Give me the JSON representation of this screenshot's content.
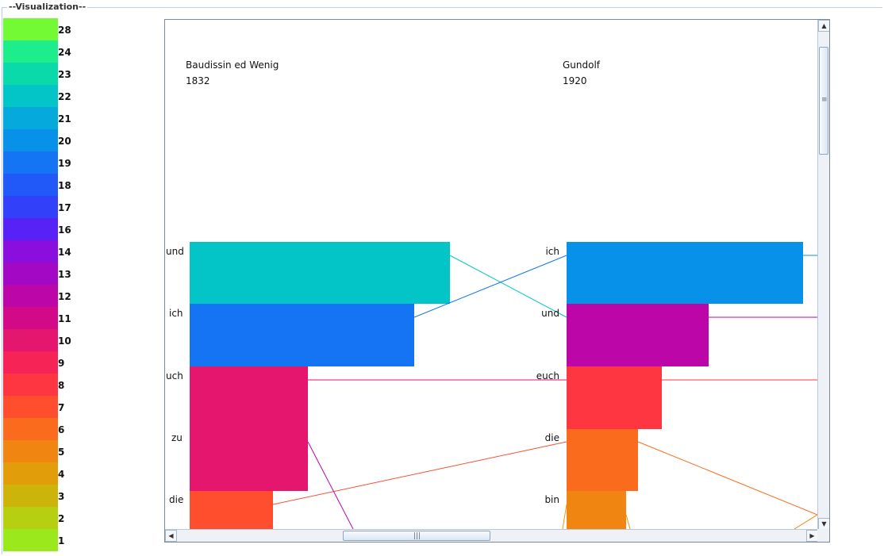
{
  "panel": {
    "title": "--Visualization--"
  },
  "legend": [
    {
      "label": "28",
      "color": "#73fa35"
    },
    {
      "label": "24",
      "color": "#1ded8a"
    },
    {
      "label": "23",
      "color": "#0ad9a9"
    },
    {
      "label": "22",
      "color": "#03c5c7"
    },
    {
      "label": "21",
      "color": "#05a9dc"
    },
    {
      "label": "20",
      "color": "#0891e8"
    },
    {
      "label": "19",
      "color": "#1474f4"
    },
    {
      "label": "18",
      "color": "#2158f8"
    },
    {
      "label": "17",
      "color": "#3340fa"
    },
    {
      "label": "16",
      "color": "#5722f5"
    },
    {
      "label": "14",
      "color": "#8a0edd"
    },
    {
      "label": "13",
      "color": "#a308c4"
    },
    {
      "label": "12",
      "color": "#bc06a8"
    },
    {
      "label": "11",
      "color": "#d20a87"
    },
    {
      "label": "10",
      "color": "#e5166d"
    },
    {
      "label": "9",
      "color": "#f52356"
    },
    {
      "label": "8",
      "color": "#fe3641"
    },
    {
      "label": "7",
      "color": "#fe4e2e"
    },
    {
      "label": "6",
      "color": "#fb6b1d"
    },
    {
      "label": "5",
      "color": "#f08511"
    },
    {
      "label": "4",
      "color": "#e29e0a"
    },
    {
      "label": "3",
      "color": "#ccb40a"
    },
    {
      "label": "2",
      "color": "#b6d011"
    },
    {
      "label": "1",
      "color": "#9be81d"
    }
  ],
  "left_column": {
    "translator": "Baudissin ed Wenig",
    "year": "1832",
    "words": [
      {
        "word": "und",
        "count": 22,
        "color": "#03c5c7"
      },
      {
        "word": "ich",
        "count": 19,
        "color": "#1474f4"
      },
      {
        "word": "uch",
        "count": 10,
        "color": "#e5166d"
      },
      {
        "word": "zu",
        "count": 10,
        "color": "#e5166d"
      },
      {
        "word": "die",
        "count": 7,
        "color": "#fe4e2e"
      }
    ]
  },
  "right_column": {
    "translator": "Gundolf",
    "year": "1920",
    "words": [
      {
        "word": "ich",
        "count": 20,
        "color": "#0891e8"
      },
      {
        "word": "und",
        "count": 12,
        "color": "#bc06a8"
      },
      {
        "word": "euch",
        "count": 8,
        "color": "#fe3641"
      },
      {
        "word": "die",
        "count": 6,
        "color": "#fb6b1d"
      },
      {
        "word": "bin",
        "count": 5,
        "color": "#f08511"
      }
    ]
  },
  "links": [
    {
      "from": "und",
      "to": "und",
      "color": "#03c5c7"
    },
    {
      "from": "ich",
      "to": "ich",
      "color": "#1474f4"
    },
    {
      "from": "uch",
      "to": "euch",
      "color": "#e5166d"
    },
    {
      "from": "die",
      "to": "die",
      "color": "#fe4e2e"
    },
    {
      "from": "zu",
      "to": "offscreen",
      "color": "#bc06a8"
    }
  ],
  "scrollbars": {
    "up_icon": "arrow-up-icon",
    "down_icon": "arrow-down-icon",
    "left_icon": "arrow-left-icon",
    "right_icon": "arrow-right-icon"
  }
}
